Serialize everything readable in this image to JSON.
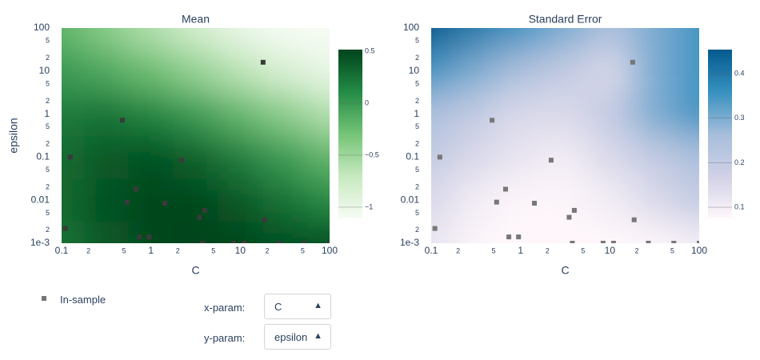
{
  "chart_data": [
    {
      "type": "contour",
      "title": "Mean",
      "xlabel": "C",
      "ylabel": "epsilon",
      "x": [
        0.1,
        0.316,
        1,
        3.16,
        10,
        31.6,
        100
      ],
      "y": [
        100,
        10,
        1,
        0.1,
        0.01,
        0.001
      ],
      "z": [
        [
          -0.2,
          -0.4,
          -0.6,
          -0.8,
          -1.0,
          -1.15,
          -1.2
        ],
        [
          0.0,
          -0.1,
          -0.25,
          -0.45,
          -0.65,
          -0.85,
          -1.0
        ],
        [
          0.2,
          0.25,
          0.15,
          0.0,
          -0.2,
          -0.4,
          -0.6
        ],
        [
          0.3,
          0.4,
          0.45,
          0.35,
          0.2,
          0.0,
          -0.2
        ],
        [
          0.3,
          0.45,
          0.5,
          0.5,
          0.4,
          0.25,
          0.1
        ],
        [
          0.25,
          0.4,
          0.5,
          0.55,
          0.5,
          0.45,
          0.45
        ]
      ],
      "colorscale": [
        "#f7fcf5",
        "#c7e9c0",
        "#74c476",
        "#238b45",
        "#00441b"
      ],
      "clim": [
        -1.108,
        0.515
      ],
      "cticks": [
        {
          "value": 0.5,
          "label": "0.5"
        },
        0,
        {
          "value": -0.5,
          "label": "−0.5"
        },
        {
          "value": -1,
          "label": "−1"
        }
      ],
      "points": {
        "name": "In-sample",
        "color": "#3a3a3a",
        "x": [
          18,
          0.48,
          0.125,
          2.2,
          0.68,
          0.54,
          1.43,
          4.0,
          3.5,
          18.7,
          0.11,
          0.74,
          0.95,
          3.8,
          8.4,
          11,
          27,
          52,
          100
        ],
        "y": [
          16,
          0.72,
          0.1,
          0.085,
          0.018,
          0.009,
          0.0085,
          0.0058,
          0.004,
          0.0035,
          0.0022,
          0.0014,
          0.0014,
          0.001,
          0.001,
          0.001,
          0.001,
          0.001,
          0.001
        ]
      },
      "log_x": true,
      "log_y": true,
      "xlim": [
        0.1,
        100
      ],
      "ylim": [
        0.001,
        100
      ],
      "xticks": [
        0.1,
        {
          "value": 0.2,
          "label": "2"
        },
        {
          "value": 0.5,
          "label": "5"
        },
        1,
        {
          "value": 2,
          "label": "2"
        },
        {
          "value": 5,
          "label": "5"
        },
        10,
        {
          "value": 20,
          "label": "2"
        },
        {
          "value": 50,
          "label": "5"
        },
        100
      ],
      "yticks": [
        {
          "value": 0.001,
          "label": "1e-3"
        },
        {
          "value": 0.002,
          "label": "2"
        },
        {
          "value": 0.005,
          "label": "5"
        },
        0.01,
        {
          "value": 0.02,
          "label": "2"
        },
        {
          "value": 0.05,
          "label": "5"
        },
        0.1,
        {
          "value": 0.2,
          "label": "2"
        },
        {
          "value": 0.5,
          "label": "5"
        },
        1,
        {
          "value": 2,
          "label": "2"
        },
        {
          "value": 5,
          "label": "5"
        },
        10,
        {
          "value": 20,
          "label": "2"
        },
        {
          "value": 50,
          "label": "5"
        },
        100
      ]
    },
    {
      "type": "contour",
      "title": "Standard Error",
      "xlabel": "C",
      "x": [
        0.1,
        0.316,
        1,
        3.16,
        10,
        31.6,
        100
      ],
      "y": [
        100,
        10,
        1,
        0.1,
        0.01,
        0.001
      ],
      "z": [
        [
          0.45,
          0.4,
          0.35,
          0.3,
          0.25,
          0.3,
          0.35
        ],
        [
          0.35,
          0.3,
          0.25,
          0.2,
          0.15,
          0.3,
          0.35
        ],
        [
          0.25,
          0.2,
          0.15,
          0.15,
          0.2,
          0.3,
          0.35
        ],
        [
          0.2,
          0.15,
          0.12,
          0.1,
          0.15,
          0.2,
          0.25
        ],
        [
          0.15,
          0.1,
          0.08,
          0.08,
          0.1,
          0.15,
          0.2
        ],
        [
          0.12,
          0.08,
          0.06,
          0.06,
          0.06,
          0.08,
          0.1
        ]
      ],
      "colorscale": [
        "#fff7fb",
        "#d0d1e6",
        "#a6bddb",
        "#3690c0",
        "#045a8d"
      ],
      "clim": [
        0.075,
        0.454
      ],
      "cticks": [
        0.4,
        0.3,
        0.2,
        0.1
      ],
      "points": {
        "name": "In-sample",
        "color": "#777777",
        "x": [
          18,
          0.48,
          0.125,
          2.2,
          0.68,
          0.54,
          1.43,
          4.0,
          3.5,
          18.7,
          0.11,
          0.74,
          0.95,
          3.8,
          8.4,
          11,
          27,
          52,
          100
        ],
        "y": [
          16,
          0.72,
          0.1,
          0.085,
          0.018,
          0.009,
          0.0085,
          0.0058,
          0.004,
          0.0035,
          0.0022,
          0.0014,
          0.0014,
          0.001,
          0.001,
          0.001,
          0.001,
          0.001,
          0.001
        ]
      },
      "log_x": true,
      "log_y": true,
      "xlim": [
        0.1,
        100
      ],
      "ylim": [
        0.001,
        100
      ],
      "xticks": [
        0.1,
        {
          "value": 0.2,
          "label": "2"
        },
        {
          "value": 0.5,
          "label": "5"
        },
        1,
        {
          "value": 2,
          "label": "2"
        },
        {
          "value": 5,
          "label": "5"
        },
        10,
        {
          "value": 20,
          "label": "2"
        },
        {
          "value": 50,
          "label": "5"
        },
        100
      ],
      "yticks": [
        {
          "value": 0.001,
          "label": "1e-3"
        },
        {
          "value": 0.002,
          "label": "2"
        },
        {
          "value": 0.005,
          "label": "5"
        },
        0.01,
        {
          "value": 0.02,
          "label": "2"
        },
        {
          "value": 0.05,
          "label": "5"
        },
        0.1,
        {
          "value": 0.2,
          "label": "2"
        },
        {
          "value": 0.5,
          "label": "5"
        },
        1,
        {
          "value": 2,
          "label": "2"
        },
        {
          "value": 5,
          "label": "5"
        },
        10,
        {
          "value": 20,
          "label": "2"
        },
        {
          "value": 50,
          "label": "5"
        },
        100
      ]
    }
  ],
  "legend": {
    "label": "In-sample",
    "color": "#777777"
  },
  "controls": {
    "x_label": "x-param:",
    "x_value": "C",
    "y_label": "y-param:",
    "y_value": "epsilon"
  }
}
